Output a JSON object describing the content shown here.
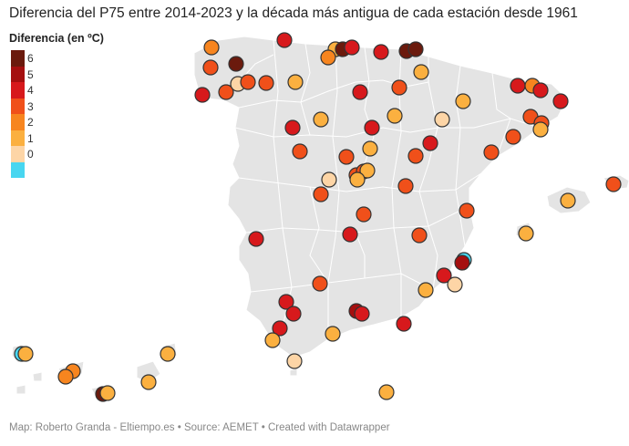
{
  "title": "Diferencia del P75 entre 2014-2023 y la década más antigua de cada estación desde 1961",
  "legend": {
    "title": "Diferencia (en ºC)",
    "items": [
      {
        "label": "6",
        "color": "#6b1a0d"
      },
      {
        "label": "5",
        "color": "#a50f0f"
      },
      {
        "label": "4",
        "color": "#d7191c"
      },
      {
        "label": "3",
        "color": "#f0501a"
      },
      {
        "label": "2",
        "color": "#f7851f"
      },
      {
        "label": "1",
        "color": "#fbb040"
      },
      {
        "label": "0",
        "color": "#fdd5a6"
      },
      {
        "label": "",
        "color": "#48d6f0"
      }
    ]
  },
  "footer": "Map: Roberto Granda - Eltiempo.es • Source: AEMET • Created with Datawrapper"
}
